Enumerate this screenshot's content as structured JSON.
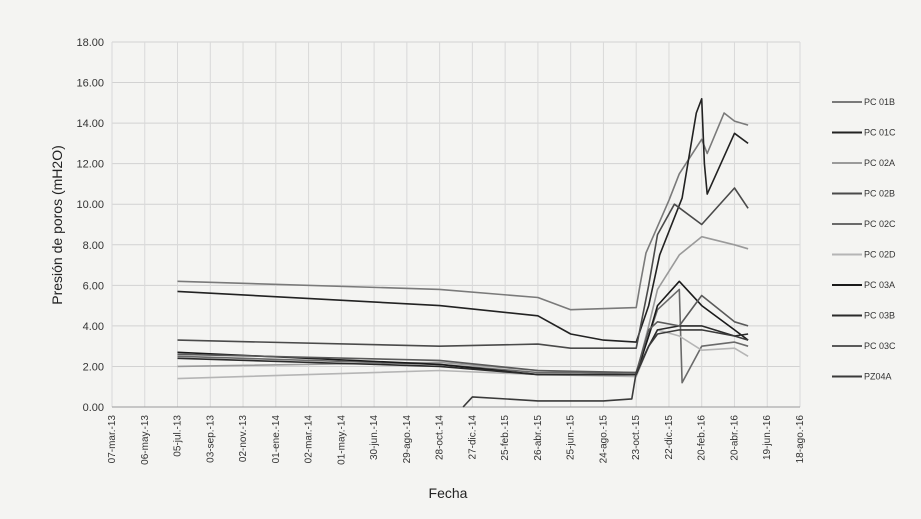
{
  "chart_data": {
    "type": "line",
    "xlabel": "Fecha",
    "ylabel": "Presión de poros (mH2O)",
    "ylim": [
      0,
      18
    ],
    "yticks": [
      "0.00",
      "2.00",
      "4.00",
      "6.00",
      "8.00",
      "10.00",
      "12.00",
      "14.00",
      "16.00",
      "18.00"
    ],
    "xticks": [
      "07-mar.-13",
      "06-may.-13",
      "05-jul.-13",
      "03-sep.-13",
      "02-nov.-13",
      "01-ene.-14",
      "02-mar.-14",
      "01-may.-14",
      "30-jun.-14",
      "29-ago.-14",
      "28-oct.-14",
      "27-dic.-14",
      "25-feb.-15",
      "26-abr.-15",
      "25-jun.-15",
      "24-ago.-15",
      "23-oct.-15",
      "22-dic.-15",
      "20-feb.-16",
      "20-abr.-16",
      "19-jun.-16",
      "18-ago.-16"
    ],
    "grid": true,
    "legend_position": "right",
    "series": [
      {
        "name": "PC 01B",
        "color": "#7a7a7a",
        "points": [
          [
            "05-jul.-13",
            6.2
          ],
          [
            "28-oct.-14",
            5.8
          ],
          [
            "26-abr.-15",
            5.4
          ],
          [
            "25-jun.-15",
            4.8
          ],
          [
            "23-oct.-15",
            4.9
          ],
          [
            "30-oct.-15",
            6.0
          ],
          [
            "10-nov.-15",
            7.6
          ],
          [
            "22-dic.-15",
            10.2
          ],
          [
            "10-ene.-16",
            11.5
          ],
          [
            "20-feb.-16",
            13.2
          ],
          [
            "01-mar.-16",
            12.5
          ],
          [
            "01-abr.-16",
            14.5
          ],
          [
            "20-abr.-16",
            14.1
          ],
          [
            "15-may.-16",
            13.9
          ]
        ]
      },
      {
        "name": "PC 01C",
        "color": "#222222",
        "points": [
          [
            "05-jul.-13",
            5.7
          ],
          [
            "28-oct.-14",
            5.0
          ],
          [
            "26-abr.-15",
            4.5
          ],
          [
            "25-jun.-15",
            3.6
          ],
          [
            "24-ago.-15",
            3.3
          ],
          [
            "23-oct.-15",
            3.2
          ],
          [
            "15-nov.-15",
            5.0
          ],
          [
            "05-dic.-15",
            7.5
          ],
          [
            "15-ene.-16",
            10.3
          ],
          [
            "10-feb.-16",
            14.5
          ],
          [
            "20-feb.-16",
            15.2
          ],
          [
            "25-feb.-16",
            12.0
          ],
          [
            "01-mar.-16",
            10.5
          ],
          [
            "20-abr.-16",
            13.5
          ],
          [
            "15-may.-16",
            13.0
          ]
        ]
      },
      {
        "name": "PC 02A",
        "color": "#9a9a9a",
        "points": [
          [
            "05-jul.-13",
            2.0
          ],
          [
            "28-oct.-14",
            2.2
          ],
          [
            "26-abr.-15",
            1.8
          ],
          [
            "23-oct.-15",
            1.6
          ],
          [
            "15-nov.-15",
            4.0
          ],
          [
            "01-dic.-15",
            5.8
          ],
          [
            "10-ene.-16",
            7.5
          ],
          [
            "20-feb.-16",
            8.4
          ],
          [
            "20-abr.-16",
            8.0
          ],
          [
            "15-may.-16",
            7.8
          ]
        ]
      },
      {
        "name": "PC 02B",
        "color": "#4a4a4a",
        "points": [
          [
            "05-jul.-13",
            3.3
          ],
          [
            "28-oct.-14",
            3.0
          ],
          [
            "26-abr.-15",
            3.1
          ],
          [
            "25-jun.-15",
            2.9
          ],
          [
            "23-oct.-15",
            2.9
          ],
          [
            "15-nov.-15",
            6.0
          ],
          [
            "01-dic.-15",
            8.5
          ],
          [
            "01-ene.-16",
            10.0
          ],
          [
            "20-feb.-16",
            9.0
          ],
          [
            "20-abr.-16",
            10.8
          ],
          [
            "15-may.-16",
            9.8
          ]
        ]
      },
      {
        "name": "PC 02C",
        "color": "#6a6a6a",
        "points": [
          [
            "05-jul.-13",
            2.5
          ],
          [
            "28-oct.-14",
            2.1
          ],
          [
            "26-abr.-15",
            1.7
          ],
          [
            "23-oct.-15",
            1.7
          ],
          [
            "15-nov.-15",
            3.5
          ],
          [
            "01-dic.-15",
            4.8
          ],
          [
            "10-ene.-16",
            5.8
          ],
          [
            "15-ene.-16",
            1.2
          ],
          [
            "20-feb.-16",
            3.0
          ],
          [
            "20-abr.-16",
            3.2
          ],
          [
            "15-may.-16",
            3.0
          ]
        ]
      },
      {
        "name": "PC 02D",
        "color": "#b5b5b5",
        "points": [
          [
            "05-jul.-13",
            1.4
          ],
          [
            "28-oct.-14",
            1.8
          ],
          [
            "26-abr.-15",
            1.6
          ],
          [
            "23-oct.-15",
            1.5
          ],
          [
            "15-nov.-15",
            3.0
          ],
          [
            "01-dic.-15",
            3.8
          ],
          [
            "10-ene.-16",
            3.5
          ],
          [
            "20-feb.-16",
            2.8
          ],
          [
            "20-abr.-16",
            2.9
          ],
          [
            "15-may.-16",
            2.5
          ]
        ]
      },
      {
        "name": "PC 03A",
        "color": "#1a1a1a",
        "points": [
          [
            "05-jul.-13",
            2.7
          ],
          [
            "28-oct.-14",
            2.1
          ],
          [
            "26-abr.-15",
            1.6
          ],
          [
            "23-oct.-15",
            1.6
          ],
          [
            "15-nov.-15",
            3.5
          ],
          [
            "01-dic.-15",
            5.0
          ],
          [
            "10-ene.-16",
            6.2
          ],
          [
            "20-feb.-16",
            5.0
          ],
          [
            "20-abr.-16",
            3.8
          ],
          [
            "15-may.-16",
            3.3
          ]
        ]
      },
      {
        "name": "PC 03B",
        "color": "#2a2a2a",
        "points": [
          [
            "05-jul.-13",
            2.4
          ],
          [
            "28-oct.-14",
            2.0
          ],
          [
            "26-abr.-15",
            1.6
          ],
          [
            "23-oct.-15",
            1.6
          ],
          [
            "15-nov.-15",
            3.0
          ],
          [
            "01-dic.-15",
            3.8
          ],
          [
            "10-ene.-16",
            4.0
          ],
          [
            "20-feb.-16",
            4.0
          ],
          [
            "20-abr.-16",
            3.5
          ],
          [
            "15-may.-16",
            3.6
          ]
        ]
      },
      {
        "name": "PC 03C",
        "color": "#5a5a5a",
        "points": [
          [
            "05-jul.-13",
            2.6
          ],
          [
            "28-oct.-14",
            2.3
          ],
          [
            "26-abr.-15",
            1.8
          ],
          [
            "23-oct.-15",
            1.7
          ],
          [
            "15-nov.-15",
            3.8
          ],
          [
            "01-dic.-15",
            4.2
          ],
          [
            "10-ene.-16",
            4.0
          ],
          [
            "20-feb.-16",
            5.5
          ],
          [
            "20-abr.-16",
            4.2
          ],
          [
            "15-may.-16",
            4.0
          ]
        ]
      },
      {
        "name": "PZ04A",
        "color": "#3a3a3a",
        "points": [
          [
            "10-dic.-14",
            0.0
          ],
          [
            "27-dic.-14",
            0.5
          ],
          [
            "26-abr.-15",
            0.3
          ],
          [
            "24-ago.-15",
            0.3
          ],
          [
            "15-oct.-15",
            0.4
          ],
          [
            "23-oct.-15",
            1.7
          ],
          [
            "15-nov.-15",
            3.0
          ],
          [
            "01-dic.-15",
            3.6
          ],
          [
            "10-ene.-16",
            3.8
          ],
          [
            "20-feb.-16",
            3.8
          ],
          [
            "20-abr.-16",
            3.5
          ],
          [
            "15-may.-16",
            3.3
          ]
        ]
      }
    ]
  }
}
